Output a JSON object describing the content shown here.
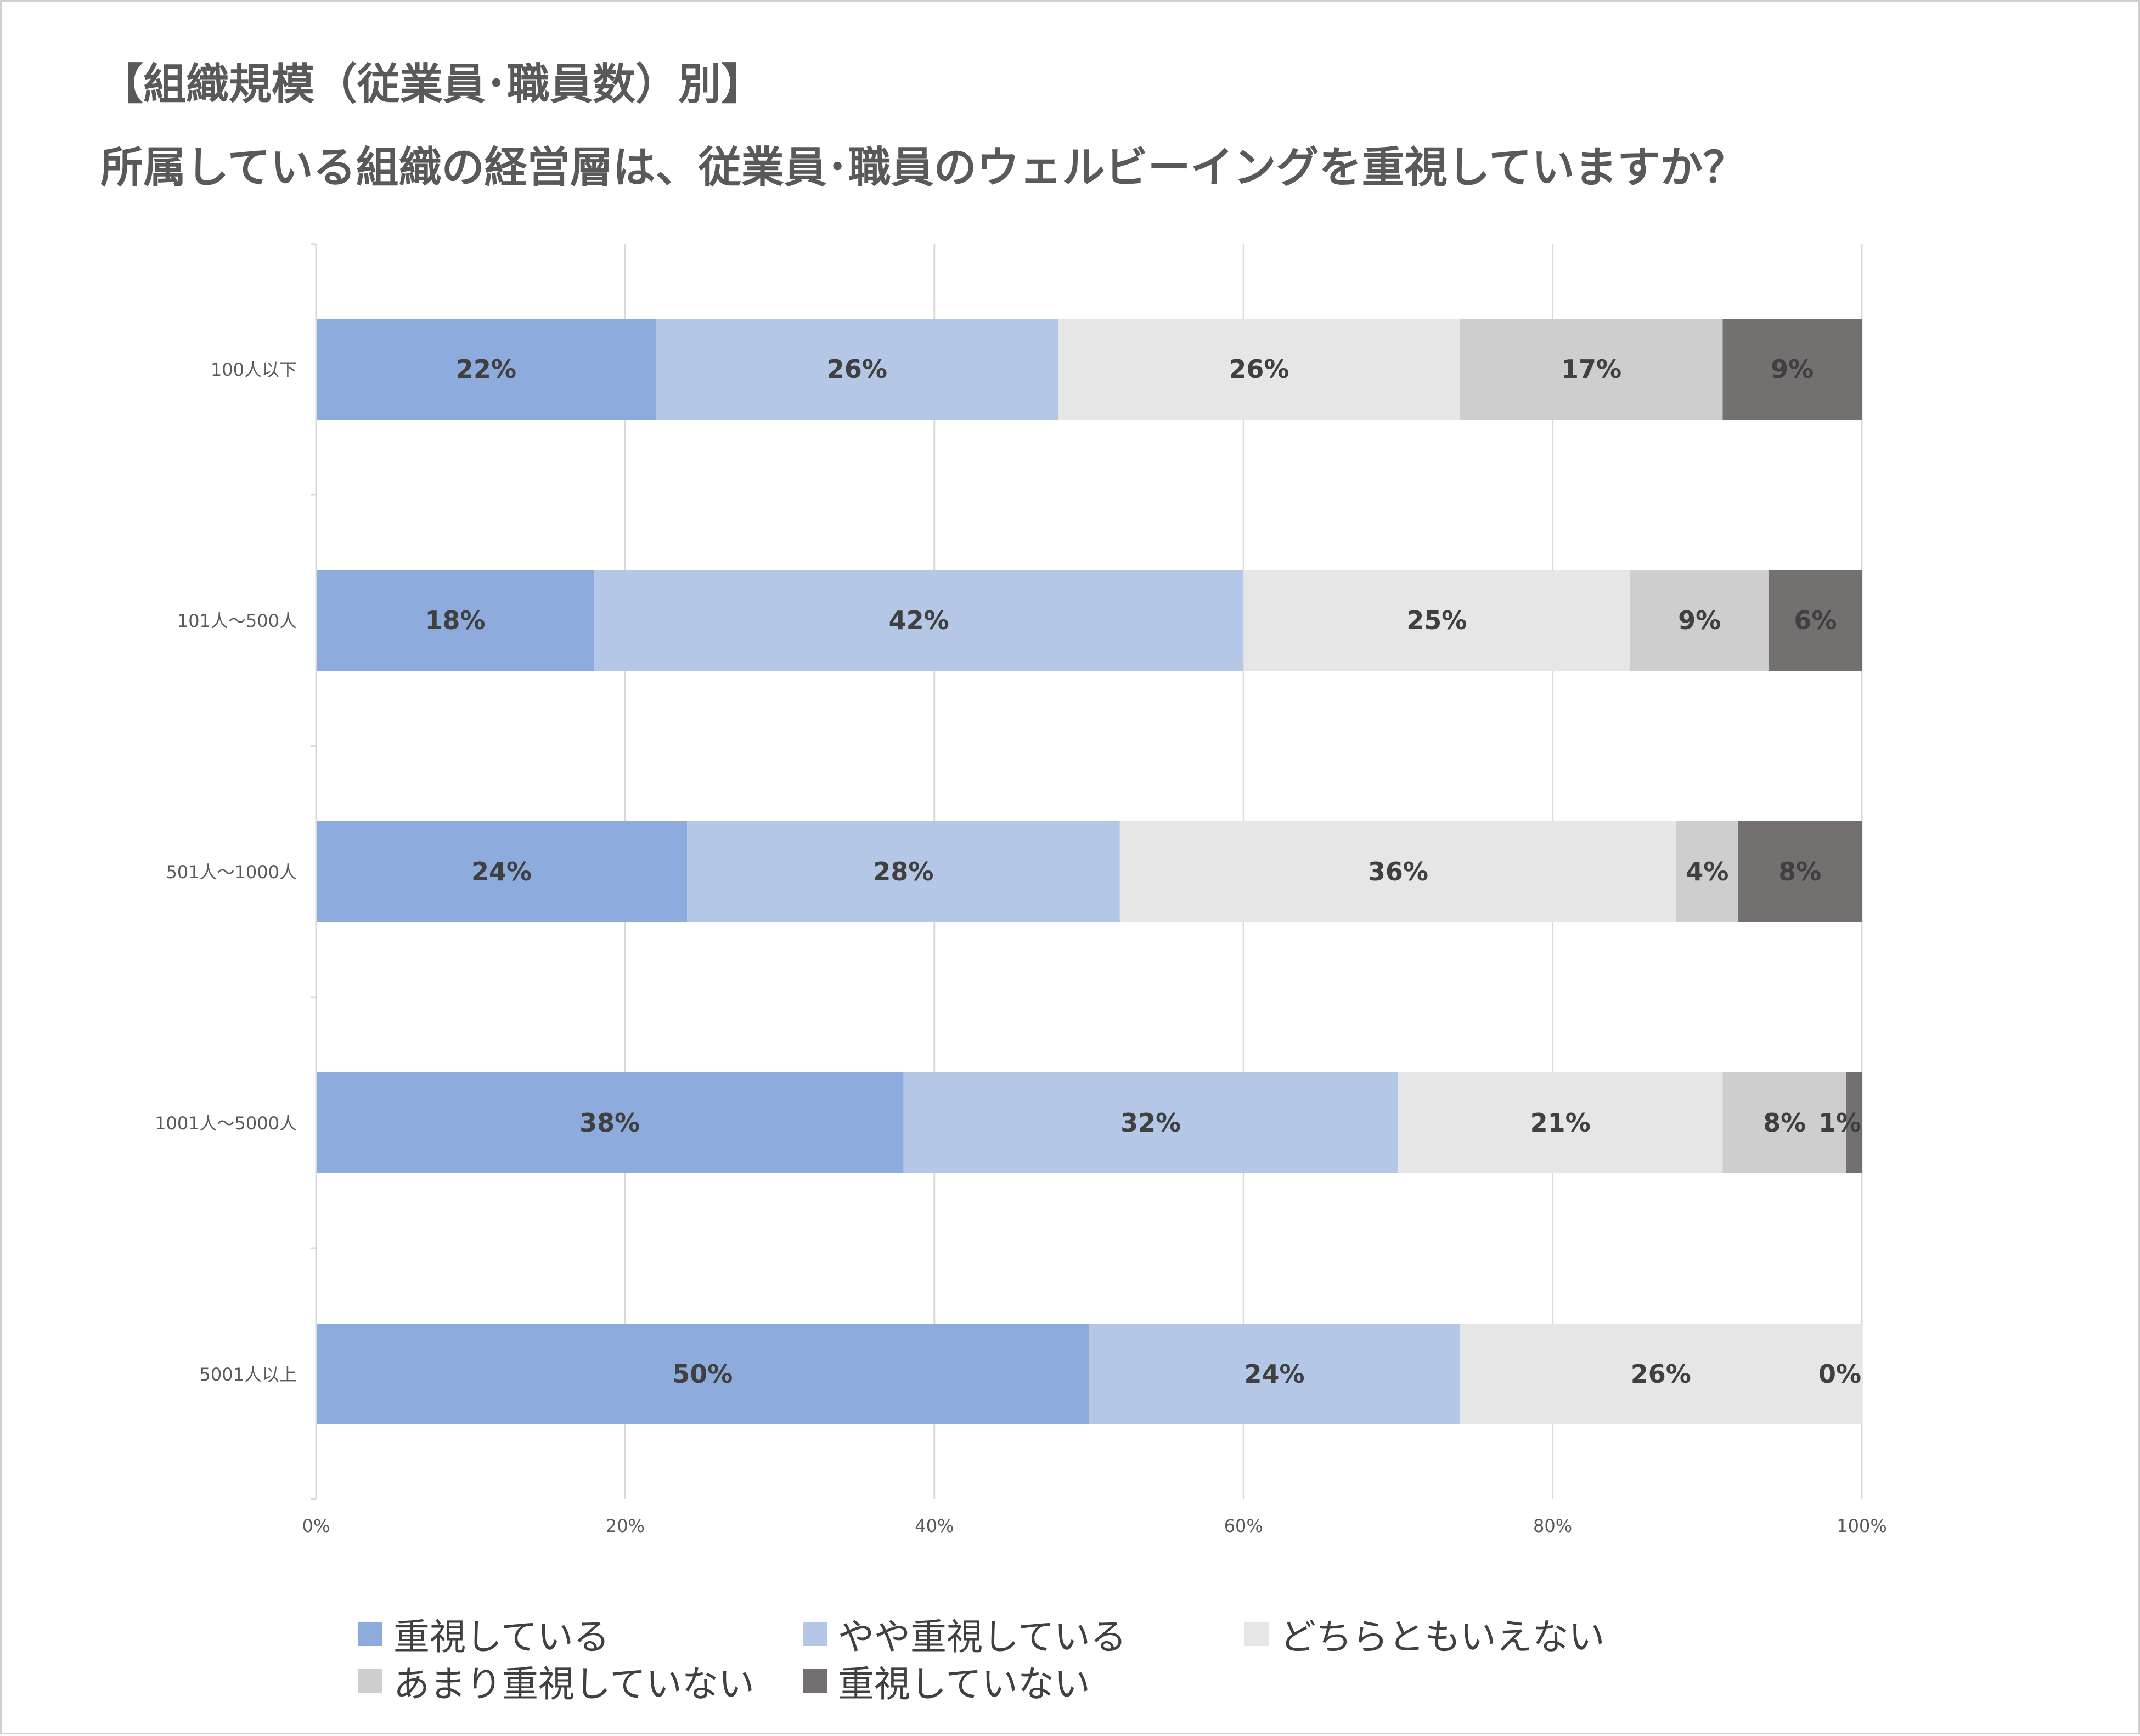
{
  "title": "【組織規模（従業員･職員数）別】",
  "subtitle": "所属している組織の経営層は、従業員･職員のウェルビーイングを重視していますか？",
  "colors": {
    "series": [
      "#8eabdd",
      "#b4c7e7",
      "#e6e6e6",
      "#cfcecf",
      "#757070"
    ],
    "label_text": "#404040",
    "axis_text": "#595959",
    "gridline": "#d9d9d9"
  },
  "chart_data": {
    "type": "bar",
    "orientation": "horizontal",
    "stacked": "percent",
    "categories": [
      "100人以下",
      "101人～500人",
      "501人～1000人",
      "1001人～5000人",
      "5001人以上"
    ],
    "series": [
      {
        "name": "重視している",
        "values": [
          22,
          18,
          24,
          38,
          50
        ],
        "labels": [
          "22%",
          "18%",
          "24%",
          "38%",
          "50%"
        ]
      },
      {
        "name": "やや重視している",
        "values": [
          26,
          42,
          28,
          32,
          24
        ],
        "labels": [
          "26%",
          "42%",
          "28%",
          "32%",
          "24%"
        ]
      },
      {
        "name": "どちらともいえない",
        "values": [
          26,
          25,
          36,
          21,
          26
        ],
        "labels": [
          "26%",
          "25%",
          "36%",
          "21%",
          "26%"
        ]
      },
      {
        "name": "あまり重視していない",
        "values": [
          17,
          9,
          4,
          8,
          0
        ],
        "labels": [
          "17%",
          "9%",
          "4%",
          "8%",
          ""
        ]
      },
      {
        "name": "重視していない",
        "values": [
          9,
          6,
          8,
          1,
          0
        ],
        "labels": [
          "9%",
          "6%",
          "8%",
          "1%",
          "0%"
        ]
      }
    ],
    "xlim": [
      0,
      100
    ],
    "xticks": [
      "0%",
      "20%",
      "40%",
      "60%",
      "80%",
      "100%"
    ],
    "grid": true,
    "legend_position": "bottom"
  }
}
